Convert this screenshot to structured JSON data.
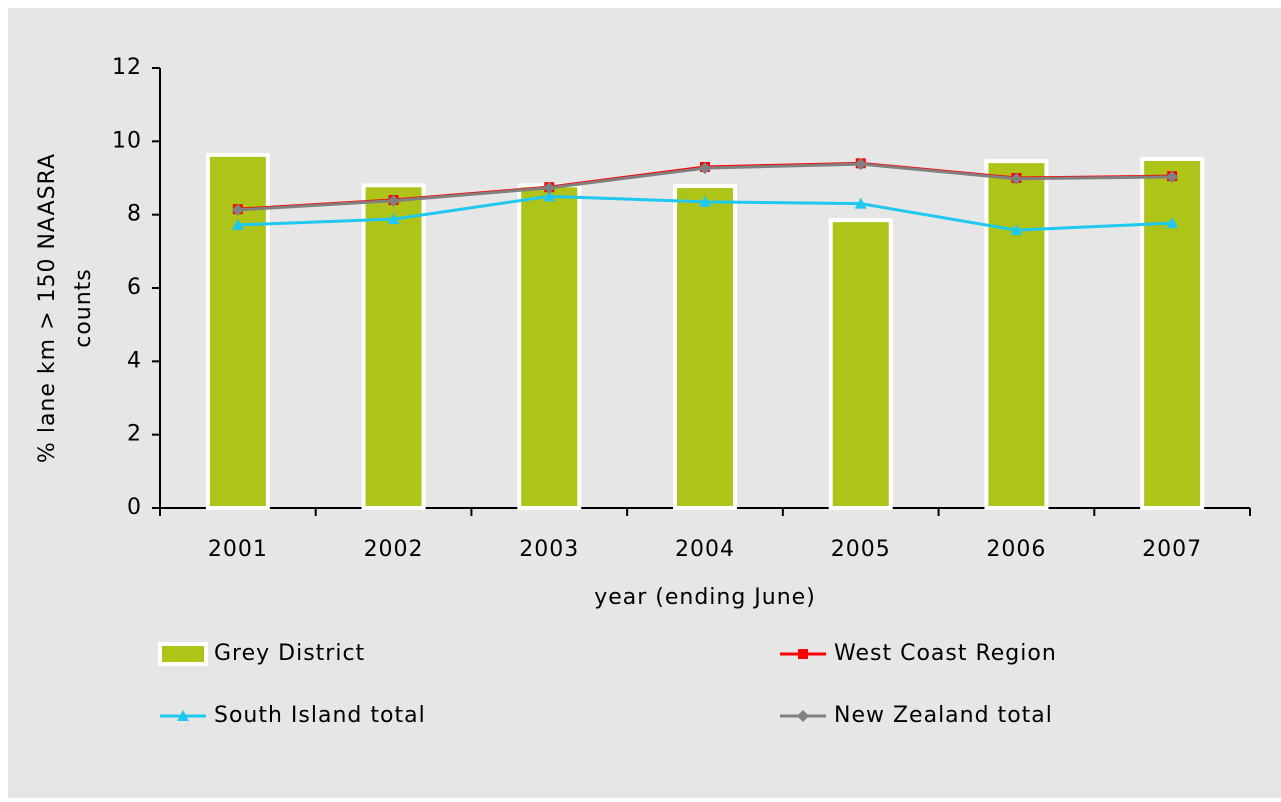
{
  "chart_data": {
    "type": "bar-line",
    "x_label": "year (ending June)",
    "y_label": [
      "% lane km > 150 NAASRA",
      "counts"
    ],
    "categories": [
      "2001",
      "2002",
      "2003",
      "2004",
      "2005",
      "2006",
      "2007"
    ],
    "ylim": [
      0,
      12
    ],
    "yticks": [
      0,
      2,
      4,
      6,
      8,
      10,
      12
    ],
    "series": [
      {
        "name": "Grey District",
        "kind": "bar",
        "color": "#aec418",
        "values": [
          9.63,
          8.8,
          8.8,
          8.78,
          7.85,
          9.46,
          9.52
        ]
      },
      {
        "name": "West Coast Region",
        "kind": "line",
        "marker": "square",
        "color": "#ff0000",
        "values": [
          8.15,
          8.4,
          8.75,
          9.3,
          9.4,
          9.0,
          9.05
        ]
      },
      {
        "name": "South Island total",
        "kind": "line",
        "marker": "triangle",
        "color": "#1ec8f0",
        "values": [
          7.72,
          7.88,
          8.5,
          8.35,
          8.3,
          7.58,
          7.77
        ]
      },
      {
        "name": "New Zealand total",
        "kind": "line",
        "marker": "diamond",
        "color": "#808080",
        "values": [
          8.13,
          8.38,
          8.73,
          9.27,
          9.38,
          8.98,
          9.03
        ]
      }
    ]
  }
}
